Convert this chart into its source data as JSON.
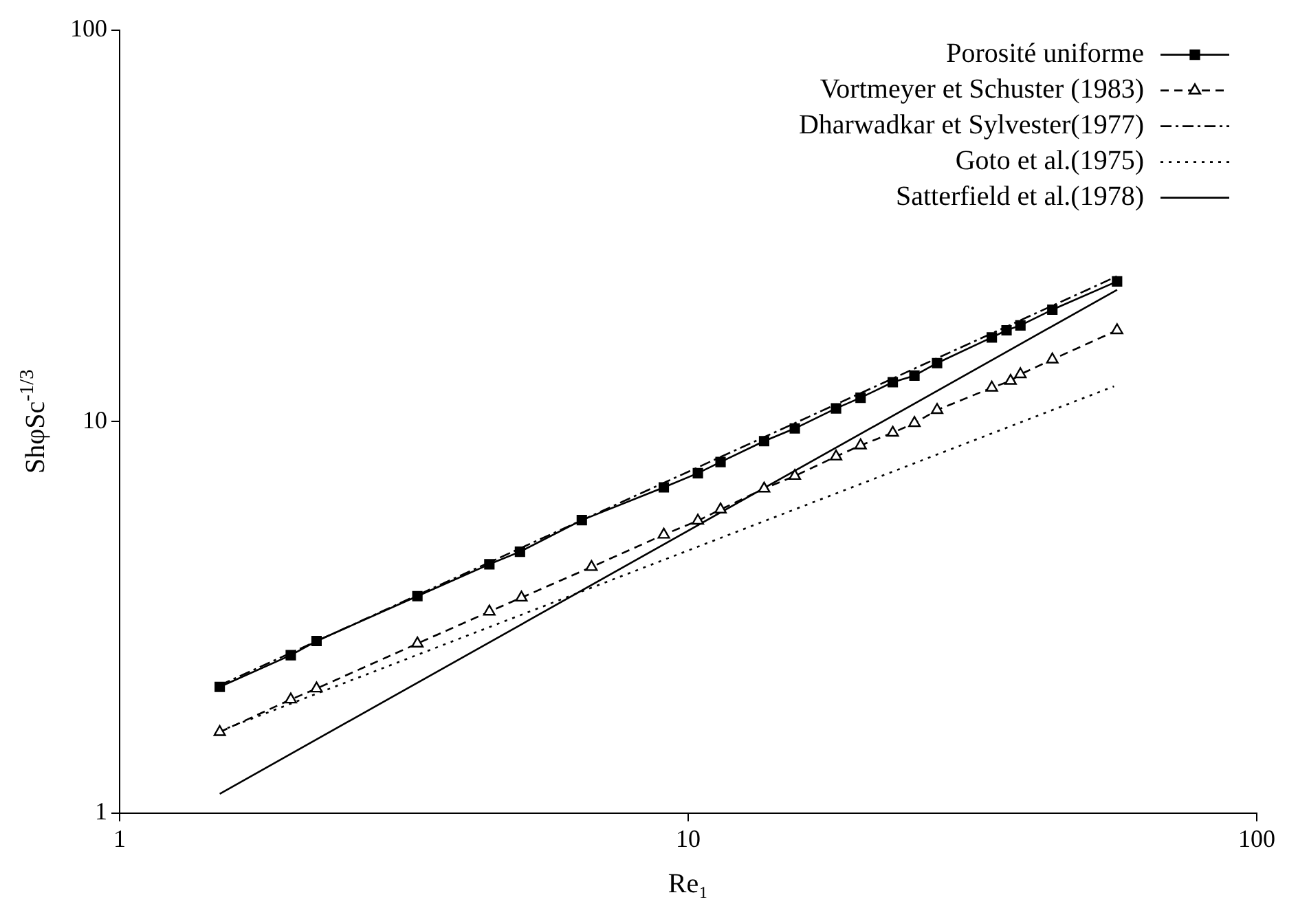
{
  "chart_data": {
    "type": "line",
    "xlabel": "Re₁",
    "ylabel": "ShφSc$^{-1/3}$",
    "log": "xy",
    "grid": false,
    "legend": "top right",
    "xlim": [
      1,
      100
    ],
    "xticks": [
      1,
      10,
      100
    ],
    "ylim": [
      1,
      100
    ],
    "yticks": [
      1,
      10,
      100
    ],
    "series": [
      {
        "name": "Porosité uniforme",
        "color": "#000000",
        "marker": "square",
        "line_style": "solid",
        "x": [
          1.5,
          2.0,
          2.22,
          3.34,
          4.47,
          5.06,
          6.5,
          9.06,
          10.4,
          11.4,
          13.6,
          15.4,
          18.2,
          20.1,
          22.9,
          25.0,
          27.4,
          34.2,
          36.3,
          38.4,
          43.7,
          56.8
        ],
        "values": [
          2.1,
          2.53,
          2.75,
          3.58,
          4.32,
          4.65,
          5.6,
          6.79,
          7.38,
          7.88,
          8.91,
          9.6,
          10.8,
          11.5,
          12.6,
          13.1,
          14.1,
          16.4,
          17.1,
          17.6,
          19.3,
          22.8
        ]
      },
      {
        "name": "Vortmeyer et Schuster (1983)",
        "color": "#000000",
        "marker": "triangle",
        "line_style": "dashed",
        "x": [
          1.5,
          2.0,
          2.22,
          3.34,
          4.47,
          5.09,
          6.76,
          9.06,
          10.4,
          11.4,
          13.6,
          15.4,
          18.2,
          20.1,
          22.9,
          25.0,
          27.4,
          34.2,
          36.9,
          38.4,
          43.7,
          56.8
        ],
        "values": [
          1.61,
          1.95,
          2.08,
          2.71,
          3.27,
          3.55,
          4.25,
          5.14,
          5.58,
          5.96,
          6.74,
          7.26,
          8.14,
          8.69,
          9.36,
          9.91,
          10.7,
          12.2,
          12.7,
          13.2,
          14.4,
          17.1
        ]
      },
      {
        "name": "Dharwadkar et Sylvester(1977)",
        "color": "#000000",
        "marker": "none",
        "line_style": "dashdot",
        "x": [
          1.5,
          56.8
        ],
        "values": [
          2.12,
          23.5
        ]
      },
      {
        "name": "Goto et al.(1975)",
        "color": "#000000",
        "marker": "none",
        "line_style": "dotted",
        "x": [
          1.5,
          56.1
        ],
        "values": [
          1.62,
          12.3
        ]
      },
      {
        "name": "Satterfield et al.(1978)",
        "color": "#000000",
        "marker": "none",
        "line_style": "solid",
        "x": [
          1.5,
          56.8
        ],
        "values": [
          1.12,
          21.7
        ]
      }
    ]
  }
}
